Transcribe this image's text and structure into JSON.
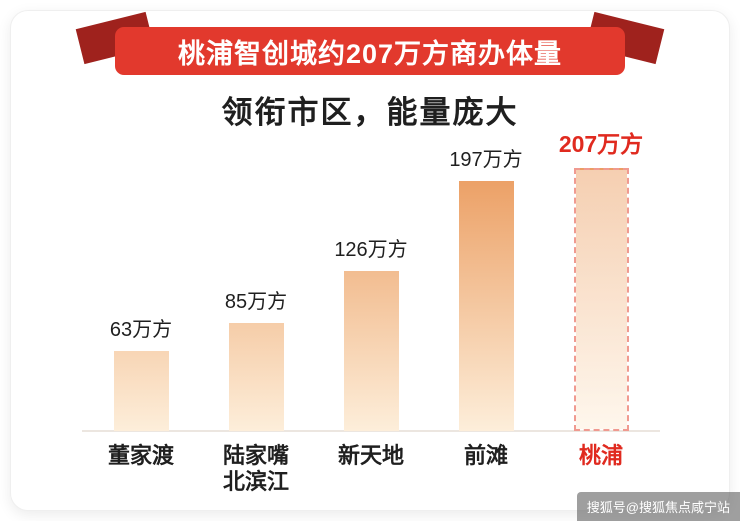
{
  "chart_data": {
    "type": "bar",
    "title": "桃浦智创城约207万方商办体量",
    "subtitle": "领衔市区，能量庞大",
    "categories": [
      "董家渡",
      "陆家嘴\n北滨江",
      "新天地",
      "前滩",
      "桃浦"
    ],
    "values": [
      63,
      85,
      126,
      197,
      207
    ],
    "value_labels": [
      "63万方",
      "85万方",
      "126万方",
      "197万方",
      "207万方"
    ],
    "unit": "万方",
    "highlight_index": 4,
    "ylim": [
      0,
      215
    ],
    "grid": false,
    "legend": "none"
  },
  "colors": {
    "ribbon_red": "#e2392d",
    "ribbon_fold": "#9f221d",
    "bar_gradient_top": "#eb9d61",
    "bar_gradient_bottom": "#fdeeda",
    "highlight_red": "#e02a1f",
    "highlight_dash": "#f09a90",
    "baseline_gray": "#ece6e0",
    "text_dark": "#1f1f1f"
  },
  "watermark": {
    "text": "搜狐号@搜狐焦点咸宁站"
  }
}
